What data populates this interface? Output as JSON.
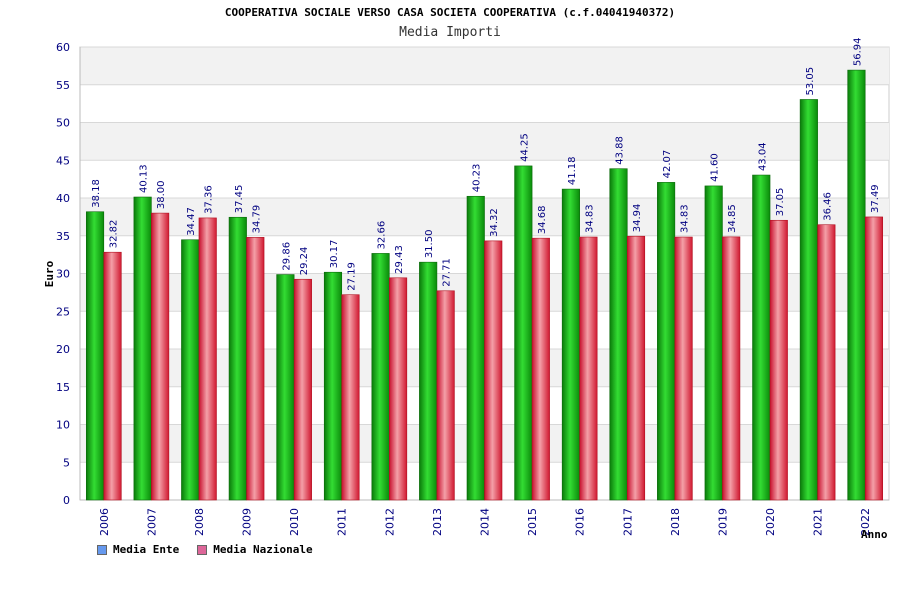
{
  "chart_data": {
    "type": "bar",
    "title": "COOPERATIVA SOCIALE VERSO CASA SOCIETA COOPERATIVA (c.f.04041940372)",
    "subtitle": "Media Importi",
    "xlabel": "Anno",
    "ylabel": "Euro",
    "ylim": [
      0,
      60
    ],
    "yticks": [
      0,
      5,
      10,
      15,
      20,
      25,
      30,
      35,
      40,
      45,
      50,
      55,
      60
    ],
    "grid": true,
    "legend_position": "bottom-left",
    "categories": [
      "2006",
      "2007",
      "2008",
      "2009",
      "2010",
      "2011",
      "2012",
      "2013",
      "2014",
      "2015",
      "2016",
      "2017",
      "2018",
      "2019",
      "2020",
      "2021",
      "2022"
    ],
    "series": [
      {
        "name": "Media Ente",
        "color": "#1fbf1f",
        "legend_color": "#6699ee",
        "values": [
          38.18,
          40.13,
          34.47,
          37.45,
          29.86,
          30.17,
          32.66,
          31.5,
          40.23,
          44.25,
          41.18,
          43.88,
          42.07,
          41.6,
          43.04,
          53.05,
          56.94
        ],
        "labels": [
          "38.18",
          "40.13",
          "34.47",
          "37.45",
          "29.86",
          "30.17",
          "32.66",
          "31.50",
          "40.23",
          "44.25",
          "41.18",
          "43.88",
          "42.07",
          "41.60",
          "43.04",
          "53.05",
          "56.94"
        ]
      },
      {
        "name": "Media Nazionale",
        "color": "#e83a4a",
        "legend_color": "#dd6699",
        "values": [
          32.82,
          38.0,
          37.36,
          34.79,
          29.24,
          27.19,
          29.43,
          27.71,
          34.32,
          34.68,
          34.83,
          34.94,
          34.83,
          34.85,
          37.05,
          36.46,
          37.49
        ],
        "labels": [
          "32.82",
          "38.00",
          "37.36",
          "34.79",
          "29.24",
          "27.19",
          "29.43",
          "27.71",
          "34.32",
          "34.68",
          "34.83",
          "34.94",
          "34.83",
          "34.85",
          "37.05",
          "36.46",
          "37.49"
        ]
      }
    ]
  }
}
